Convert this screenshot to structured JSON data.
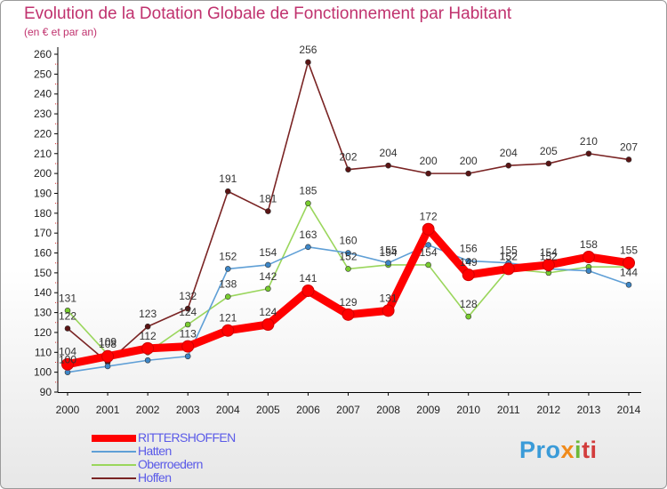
{
  "title": "Evolution de la Dotation Globale de Fonctionnement par Habitant",
  "subtitle": "(en € et par an)",
  "logo": {
    "part1": "Pro",
    "part2": "x",
    "part3": "i",
    "part4": "ti"
  },
  "chart_data": {
    "type": "line",
    "title": "Evolution de la Dotation Globale de Fonctionnement par Habitant",
    "subtitle": "(en € et par an)",
    "xlabel": "",
    "ylabel": "",
    "ylim": [
      90,
      260
    ],
    "ytick_step": 10,
    "grid": false,
    "legend_position": "bottom-left",
    "categories": [
      "2000",
      "2001",
      "2002",
      "2003",
      "2004",
      "2005",
      "2006",
      "2007",
      "2008",
      "2009",
      "2010",
      "2011",
      "2012",
      "2013",
      "2014"
    ],
    "series": [
      {
        "name": "Hoffen",
        "color": "#7a2424",
        "marker": "#5a1414",
        "values": [
          122,
          105,
          123,
          132,
          191,
          181,
          256,
          202,
          204,
          200,
          200,
          204,
          205,
          210,
          207
        ],
        "labels": [
          "122",
          "",
          "123",
          "132",
          "191",
          "181",
          "256",
          "202",
          "204",
          "200",
          "200",
          "204",
          "205",
          "210",
          "207"
        ]
      },
      {
        "name": "Oberroedern",
        "color": "#9ad65c",
        "marker": "#78cc2e",
        "values": [
          131,
          109,
          110,
          124,
          138,
          142,
          185,
          152,
          154,
          154,
          128,
          152,
          150,
          153,
          153
        ],
        "labels": [
          "131",
          "109",
          "",
          "124",
          "138",
          "142",
          "185",
          "152",
          "154",
          "154",
          "128",
          "152",
          "",
          "",
          ""
        ]
      },
      {
        "name": "Hatten",
        "color": "#5f9fd6",
        "marker": "#3d86c6",
        "values": [
          100,
          103,
          106,
          108,
          152,
          154,
          163,
          160,
          155,
          164,
          156,
          155,
          152,
          151,
          144
        ],
        "labels": [
          "100",
          "",
          "",
          "",
          "152",
          "154",
          "163",
          "160",
          "155",
          "",
          "156",
          "155",
          "152",
          "",
          "144"
        ]
      },
      {
        "name": "RITTERSHOFFEN",
        "color": "#ff0000",
        "marker": "#ff0000",
        "values": [
          104,
          108,
          112,
          113,
          121,
          124,
          141,
          129,
          131,
          172,
          149,
          152,
          154,
          158,
          155
        ],
        "labels": [
          "104",
          "108",
          "112",
          "113",
          "121",
          "124",
          "141",
          "129",
          "131",
          "172",
          "149",
          "152",
          "154",
          "158",
          "155"
        ]
      }
    ]
  }
}
